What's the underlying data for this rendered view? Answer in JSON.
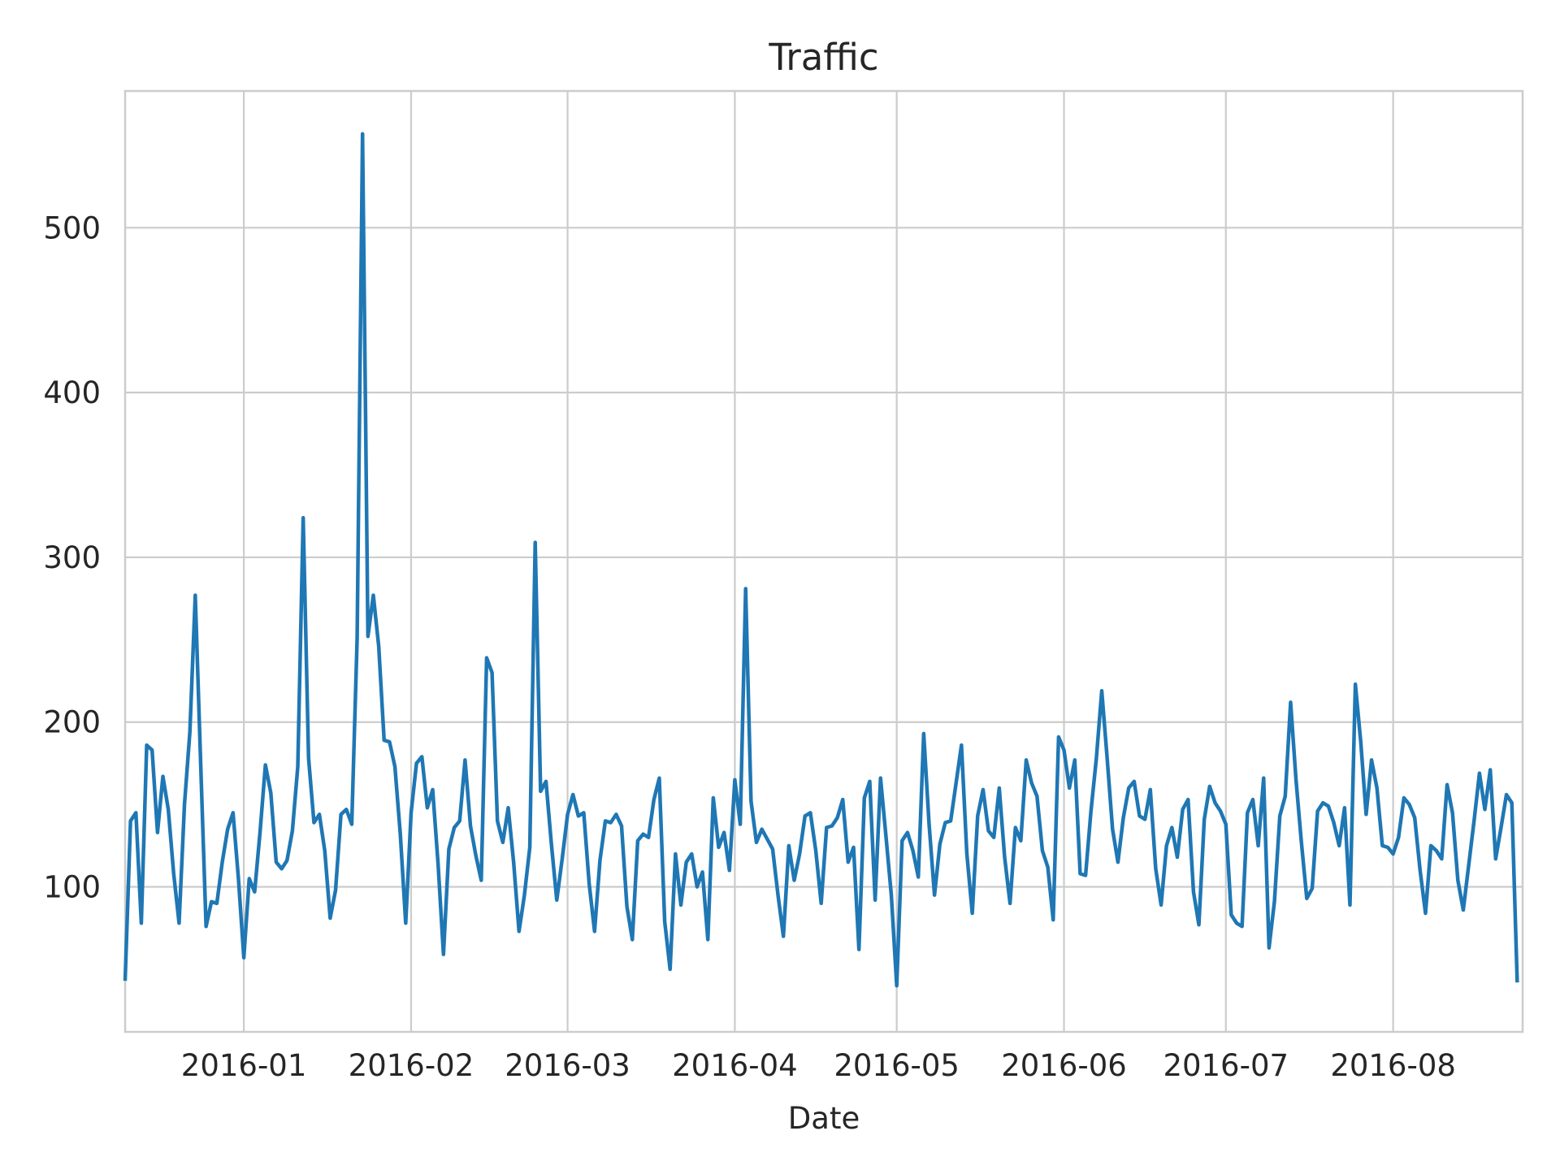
{
  "chart_data": {
    "type": "line",
    "title": "Traffic",
    "xlabel": "Date",
    "ylabel": "",
    "xlim": [
      "2015-12-10",
      "2016-08-25"
    ],
    "ylim": [
      12,
      583
    ],
    "grid": true,
    "legend": "none",
    "x_tick_labels": [
      "2016-01",
      "2016-02",
      "2016-03",
      "2016-04",
      "2016-05",
      "2016-06",
      "2016-07",
      "2016-08"
    ],
    "x_tick_dates": [
      "2016-01-01",
      "2016-02-01",
      "2016-03-01",
      "2016-04-01",
      "2016-05-01",
      "2016-06-01",
      "2016-07-01",
      "2016-08-01"
    ],
    "y_ticks": [
      100,
      200,
      300,
      400,
      500
    ],
    "y_tick_labels": [
      "100",
      "200",
      "300",
      "400",
      "500"
    ],
    "colors": {
      "line": "#1f77b4",
      "grid": "#cccccc",
      "axis": "#cccccc",
      "text": "#262626",
      "background": "#ffffff"
    },
    "series": [
      {
        "start_date": "2015-12-10",
        "step_days": 1,
        "values": [
          43,
          140,
          145,
          78,
          186,
          183,
          133,
          167,
          147,
          108,
          78,
          150,
          194,
          277,
          175,
          76,
          91,
          90,
          115,
          135,
          145,
          105,
          57,
          105,
          97,
          133,
          174,
          157,
          115,
          111,
          116,
          134,
          173,
          324,
          178,
          139,
          144,
          122,
          81,
          98,
          144,
          147,
          138,
          251,
          557,
          252,
          277,
          246,
          189,
          188,
          173,
          132,
          78,
          145,
          175,
          179,
          148,
          159,
          114,
          59,
          123,
          136,
          140,
          177,
          137,
          119,
          104,
          239,
          230,
          140,
          127,
          148,
          115,
          73,
          95,
          124,
          309,
          158,
          164,
          126,
          92,
          117,
          144,
          156,
          143,
          145,
          102,
          73,
          116,
          140,
          139,
          144,
          137,
          88,
          68,
          128,
          132,
          130,
          153,
          166,
          79,
          50,
          120,
          89,
          115,
          120,
          100,
          109,
          68,
          154,
          124,
          133,
          110,
          165,
          138,
          281,
          152,
          127,
          135,
          129,
          123,
          95,
          70,
          125,
          104,
          120,
          143,
          145,
          122,
          90,
          136,
          137,
          142,
          153,
          115,
          124,
          62,
          154,
          164,
          92,
          166,
          131,
          95,
          40,
          128,
          133,
          122,
          106,
          193,
          138,
          95,
          126,
          139,
          140,
          163,
          186,
          120,
          84,
          143,
          159,
          134,
          130,
          160,
          118,
          90,
          136,
          128,
          177,
          163,
          155,
          122,
          112,
          80,
          191,
          183,
          160,
          177,
          108,
          107,
          146,
          178,
          219,
          178,
          135,
          115,
          142,
          160,
          164,
          143,
          141,
          159,
          111,
          89,
          125,
          136,
          118,
          147,
          153,
          97,
          77,
          141,
          161,
          151,
          146,
          138,
          83,
          78,
          76,
          145,
          153,
          125,
          166,
          63,
          91,
          143,
          155,
          212,
          165,
          127,
          93,
          99,
          146,
          151,
          149,
          139,
          125,
          148,
          89,
          223,
          188,
          144,
          177,
          160,
          125,
          124,
          120,
          130,
          154,
          150,
          142,
          110,
          84,
          125,
          122,
          117,
          162,
          145,
          104,
          86,
          113,
          140,
          169,
          147,
          171,
          117,
          136,
          156,
          151,
          42
        ]
      }
    ]
  }
}
